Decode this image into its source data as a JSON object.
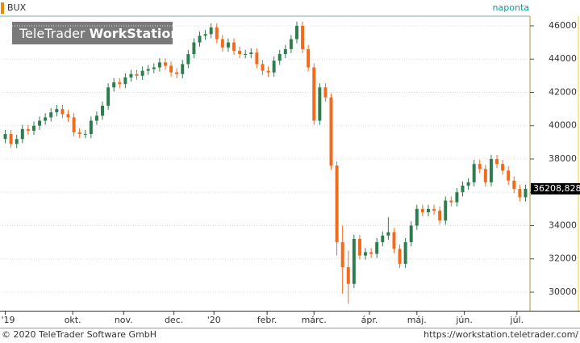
{
  "chart_data": {
    "type": "candlestick",
    "title": "BUX",
    "interval": "naponta",
    "watermark": [
      "TeleTrader",
      "WorkStation"
    ],
    "footer_left": "© 2020 TeleTrader Software GmbH",
    "footer_right": "https://workstation.teletrader.com/",
    "up_color": "#2e7d4f",
    "down_color": "#f26b1d",
    "grid": true,
    "ylim": [
      28885,
      46580
    ],
    "yticks": [
      30000,
      32000,
      34000,
      36000,
      38000,
      40000,
      42000,
      44000,
      46000
    ],
    "xlim": [
      -0.5,
      91.5
    ],
    "xticks": [
      {
        "value": 0,
        "label": "'19"
      },
      {
        "value": 11.8,
        "label": "okt."
      },
      {
        "value": 20.7,
        "label": "nov."
      },
      {
        "value": 29.5,
        "label": "dec."
      },
      {
        "value": 36.5,
        "label": "'20"
      },
      {
        "value": 45.8,
        "label": "febr."
      },
      {
        "value": 54,
        "label": "márc."
      },
      {
        "value": 63.7,
        "label": "ápr."
      },
      {
        "value": 72,
        "label": "máj."
      },
      {
        "value": 80.3,
        "label": "jún."
      },
      {
        "value": 89.5,
        "label": "júl."
      }
    ],
    "last_value": 36208.828,
    "last_value_label": "36208,828",
    "open": [
      39200,
      39500,
      38900,
      39200,
      39800,
      39700,
      40000,
      40300,
      40500,
      40800,
      41000,
      40700,
      40500,
      39600,
      39500,
      39500,
      40300,
      40600,
      41200,
      42300,
      42600,
      42500,
      42900,
      43100,
      43000,
      43300,
      43400,
      43500,
      43800,
      43600,
      43200,
      43100,
      43700,
      44300,
      45000,
      45400,
      45500,
      45900,
      45200,
      44700,
      45000,
      44500,
      44300,
      44300,
      44400,
      43700,
      43300,
      43200,
      43900,
      44300,
      44600,
      45200,
      46000,
      44600,
      43500,
      40300,
      42300,
      41700,
      37600,
      33000,
      31500,
      30500,
      33200,
      32200,
      32400,
      32300,
      33000,
      33400,
      33600,
      32600,
      31700,
      33000,
      34000,
      35000,
      34800,
      35000,
      34900,
      34300,
      35500,
      35400,
      36000,
      36400,
      36600,
      37700,
      37400,
      36600,
      38000,
      37700,
      37300,
      36700,
      36200,
      35700
    ],
    "high": [
      39750,
      39750,
      39450,
      40050,
      40050,
      40250,
      40550,
      40750,
      41050,
      41250,
      41250,
      40950,
      40750,
      39850,
      39750,
      40550,
      40850,
      41450,
      42550,
      42850,
      42850,
      43150,
      43350,
      43350,
      43550,
      43650,
      43750,
      44050,
      44050,
      43850,
      43450,
      43950,
      44550,
      45250,
      45650,
      45750,
      46150,
      46150,
      45450,
      45250,
      45250,
      44750,
      44550,
      44650,
      44650,
      43950,
      43550,
      44150,
      44550,
      44850,
      45450,
      46250,
      46250,
      44850,
      43750,
      42550,
      42550,
      41950,
      37850,
      34000,
      32500,
      33450,
      33450,
      32650,
      32650,
      33250,
      33650,
      34500,
      33850,
      32850,
      33250,
      34250,
      35250,
      35250,
      35250,
      35250,
      35150,
      35750,
      35750,
      36250,
      36650,
      36850,
      37950,
      37950,
      37650,
      38250,
      38250,
      37950,
      37550,
      36950,
      36450,
      36450
    ],
    "low": [
      38950,
      38650,
      38650,
      38950,
      39450,
      39450,
      39750,
      40050,
      40250,
      40550,
      40450,
      40250,
      39350,
      39250,
      39250,
      39250,
      40050,
      40350,
      40950,
      42050,
      42250,
      42250,
      42650,
      42750,
      42750,
      43050,
      43150,
      43250,
      43350,
      42950,
      42850,
      42850,
      43450,
      44050,
      44750,
      45150,
      45250,
      44950,
      44450,
      44450,
      44250,
      44050,
      44050,
      44050,
      43450,
      43050,
      42950,
      42950,
      43650,
      44050,
      44350,
      44950,
      44350,
      43250,
      40050,
      40050,
      41450,
      37350,
      32200,
      29900,
      29300,
      30250,
      31950,
      31950,
      32050,
      32050,
      32750,
      33150,
      32350,
      31450,
      31450,
      32750,
      33750,
      34550,
      34550,
      34650,
      34050,
      34050,
      35150,
      35150,
      35750,
      36150,
      36350,
      37150,
      36350,
      36350,
      37450,
      37050,
      36450,
      35950,
      35450,
      35450
    ],
    "close": [
      39500,
      38900,
      39200,
      39800,
      39700,
      40000,
      40300,
      40500,
      40800,
      41000,
      40700,
      40500,
      39600,
      39500,
      39500,
      40300,
      40600,
      41200,
      42300,
      42600,
      42500,
      42900,
      43100,
      43000,
      43300,
      43400,
      43500,
      43800,
      43600,
      43200,
      43100,
      43700,
      44300,
      45000,
      45400,
      45500,
      45900,
      45200,
      44700,
      45000,
      44500,
      44300,
      44300,
      44400,
      43700,
      43300,
      43200,
      43900,
      44300,
      44600,
      45200,
      46000,
      44600,
      43500,
      40300,
      42300,
      41700,
      37600,
      33000,
      31500,
      30500,
      33200,
      32200,
      32400,
      32300,
      33000,
      33400,
      33600,
      32600,
      31700,
      33000,
      34000,
      35000,
      34800,
      35000,
      34900,
      34300,
      35500,
      35400,
      36000,
      36400,
      36600,
      37700,
      37400,
      36600,
      38000,
      37700,
      37300,
      36700,
      36200,
      35700,
      36208.828
    ]
  }
}
